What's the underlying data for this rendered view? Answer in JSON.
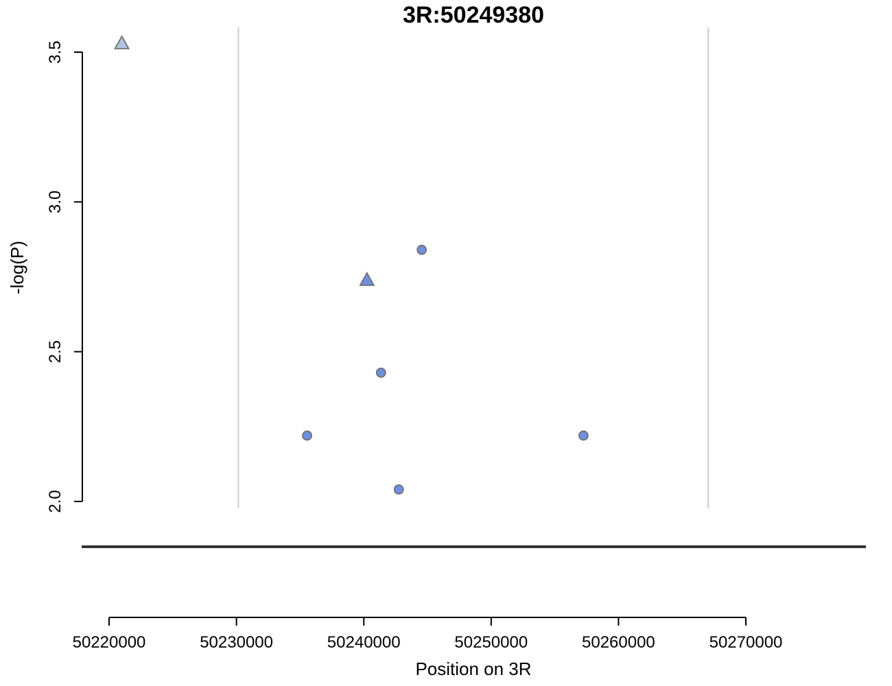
{
  "chart_data": {
    "type": "scatter",
    "title": "3R:50249380",
    "ylabel": "-log(P)",
    "xlabel": "Position on 3R",
    "ylim": [
      2.0,
      3.5
    ],
    "yticks": [
      "2.0",
      "2.5",
      "3.0",
      "3.5"
    ],
    "xlim": [
      50220000,
      50270000
    ],
    "xticks": [
      "50220000",
      "50230000",
      "50240000",
      "50250000",
      "50260000",
      "50270000"
    ],
    "region_lines": [
      50230150,
      50267050
    ],
    "points": [
      {
        "x": 50221000,
        "y": 3.53,
        "shape": "triangle",
        "color": "#b0c4de"
      },
      {
        "x": 50240250,
        "y": 2.74,
        "shape": "triangle",
        "color": "#6f8fe0"
      },
      {
        "x": 50244550,
        "y": 2.84,
        "shape": "circle",
        "color": "#6f8fe0"
      },
      {
        "x": 50241350,
        "y": 2.43,
        "shape": "circle",
        "color": "#6f8fe0"
      },
      {
        "x": 50235550,
        "y": 2.22,
        "shape": "circle",
        "color": "#6f8fe0"
      },
      {
        "x": 50257250,
        "y": 2.22,
        "shape": "circle",
        "color": "#6f8fe0"
      },
      {
        "x": 50242750,
        "y": 2.04,
        "shape": "circle",
        "color": "#6f8fe0"
      }
    ]
  }
}
